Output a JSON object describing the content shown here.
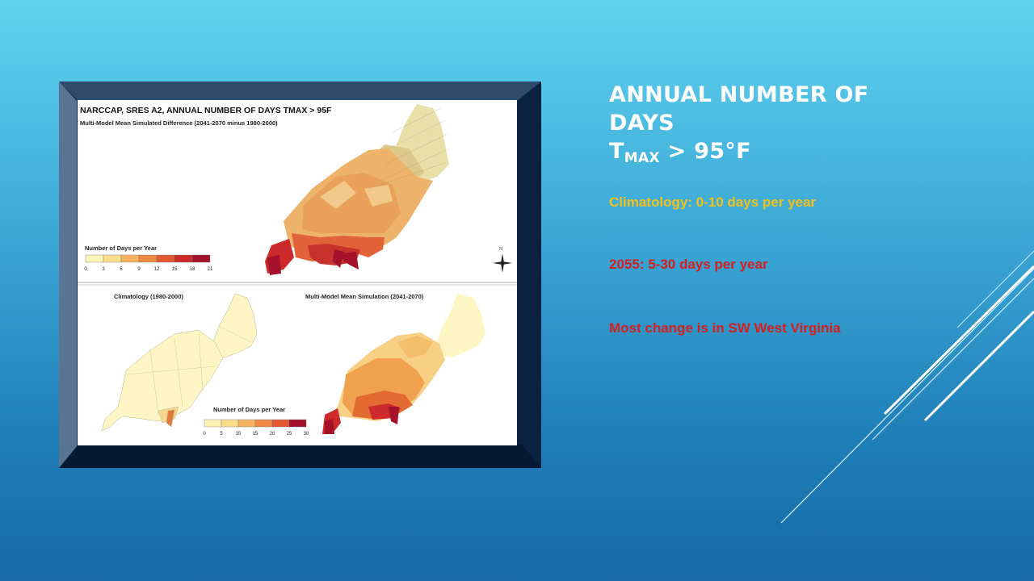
{
  "slide": {
    "title_line1": "Annual Number of",
    "title_line2": "Days",
    "title_t": "T",
    "title_sub": "MAX",
    "title_rest": " > 95°F",
    "bullets": [
      {
        "text": "Climatology:  0-10 days per year",
        "color": "#f2c21a"
      },
      {
        "text": "2055: 5-30 days per year",
        "color": "#d61e1e"
      },
      {
        "text": "Most change is in SW West Virginia",
        "color": "#d61e1e"
      }
    ]
  },
  "figure": {
    "top_title": "NARCCAP, SRES A2, ANNUAL NUMBER OF DAYS TMAX > 95F",
    "top_subtitle": "Multi-Model Mean Simulated Difference (2041-2070 minus 1980-2000)",
    "top_legend_title": "Number of Days per Year",
    "top_legend_ticks": [
      "0",
      "3",
      "6",
      "9",
      "12",
      "15",
      "18",
      "21"
    ],
    "top_legend_colors": [
      "#fdf3b6",
      "#fbdc8a",
      "#f6b35f",
      "#ee8a45",
      "#e25a32",
      "#cc2a2b",
      "#a3122a"
    ],
    "north_label": "N",
    "left_title": "Climatology (1980-2000)",
    "right_title": "Multi-Model Mean Simulation (2041-2070)",
    "bottom_legend_title": "Number of Days per Year",
    "bottom_legend_ticks": [
      "0",
      "5",
      "10",
      "15",
      "20",
      "25",
      "30"
    ],
    "bottom_legend_colors": [
      "#fdf3b6",
      "#fbdc8a",
      "#f6b35f",
      "#ee8a45",
      "#e25a32",
      "#a3122a"
    ]
  }
}
